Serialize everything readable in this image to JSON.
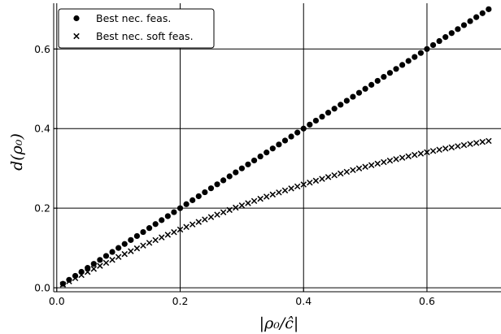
{
  "chart_data": {
    "type": "scatter",
    "xlabel": "|ρ₀/ĉ|",
    "ylabel": "d(ρ₀)",
    "xlim": [
      -0.005,
      0.72
    ],
    "ylim": [
      -0.01,
      0.715
    ],
    "xticks": [
      0.0,
      0.2,
      0.4,
      0.6
    ],
    "yticks": [
      0.0,
      0.2,
      0.4,
      0.6
    ],
    "xtick_labels": [
      "0.0",
      "0.2",
      "0.4",
      "0.6"
    ],
    "ytick_labels": [
      "0.0",
      "0.2",
      "0.4",
      "0.6"
    ],
    "grid": true,
    "legend_position": "top-left",
    "x": [
      0.01,
      0.02,
      0.03,
      0.04,
      0.05,
      0.06,
      0.07,
      0.08,
      0.09,
      0.1,
      0.11,
      0.12,
      0.13,
      0.14,
      0.15,
      0.16,
      0.17,
      0.18,
      0.19,
      0.2,
      0.21,
      0.22,
      0.23,
      0.24,
      0.25,
      0.26,
      0.27,
      0.28,
      0.29,
      0.3,
      0.31,
      0.32,
      0.33,
      0.34,
      0.35,
      0.36,
      0.37,
      0.38,
      0.39,
      0.4,
      0.41,
      0.42,
      0.43,
      0.44,
      0.45,
      0.46,
      0.47,
      0.48,
      0.49,
      0.5,
      0.51,
      0.52,
      0.53,
      0.54,
      0.55,
      0.56,
      0.57,
      0.58,
      0.59,
      0.6,
      0.61,
      0.62,
      0.63,
      0.64,
      0.65,
      0.66,
      0.67,
      0.68,
      0.69,
      0.7
    ],
    "series": [
      {
        "name": "Best nec. feas.",
        "marker": "circle",
        "color": "#000000",
        "values": [
          0.01,
          0.02,
          0.03,
          0.04,
          0.05,
          0.06,
          0.07,
          0.08,
          0.09,
          0.1,
          0.11,
          0.12,
          0.13,
          0.14,
          0.15,
          0.16,
          0.17,
          0.18,
          0.19,
          0.2,
          0.21,
          0.22,
          0.23,
          0.24,
          0.25,
          0.26,
          0.27,
          0.28,
          0.29,
          0.3,
          0.31,
          0.32,
          0.33,
          0.34,
          0.35,
          0.36,
          0.37,
          0.38,
          0.39,
          0.4,
          0.41,
          0.42,
          0.43,
          0.44,
          0.45,
          0.46,
          0.47,
          0.48,
          0.49,
          0.5,
          0.51,
          0.52,
          0.53,
          0.54,
          0.55,
          0.56,
          0.57,
          0.58,
          0.59,
          0.6,
          0.61,
          0.62,
          0.63,
          0.64,
          0.65,
          0.66,
          0.67,
          0.68,
          0.69,
          0.7
        ]
      },
      {
        "name": "Best nec. soft feas.",
        "marker": "cross",
        "color": "#000000",
        "values": [
          0.0081,
          0.0162,
          0.0241,
          0.032,
          0.0398,
          0.0475,
          0.0551,
          0.0626,
          0.0701,
          0.0774,
          0.0847,
          0.0919,
          0.099,
          0.106,
          0.1129,
          0.1198,
          0.1265,
          0.1332,
          0.1398,
          0.1463,
          0.1528,
          0.1591,
          0.1654,
          0.1716,
          0.1777,
          0.1837,
          0.1897,
          0.1955,
          0.2013,
          0.207,
          0.2126,
          0.2181,
          0.2236,
          0.229,
          0.2343,
          0.2395,
          0.2446,
          0.2496,
          0.2546,
          0.2595,
          0.2643,
          0.269,
          0.2737,
          0.2782,
          0.2827,
          0.2871,
          0.2914,
          0.2957,
          0.2999,
          0.304,
          0.308,
          0.3119,
          0.3157,
          0.3195,
          0.3232,
          0.3268,
          0.3303,
          0.3338,
          0.3372,
          0.3405,
          0.3437,
          0.3468,
          0.3499,
          0.3528,
          0.3557,
          0.3585,
          0.3613,
          0.3639,
          0.3665,
          0.369
        ]
      }
    ]
  }
}
